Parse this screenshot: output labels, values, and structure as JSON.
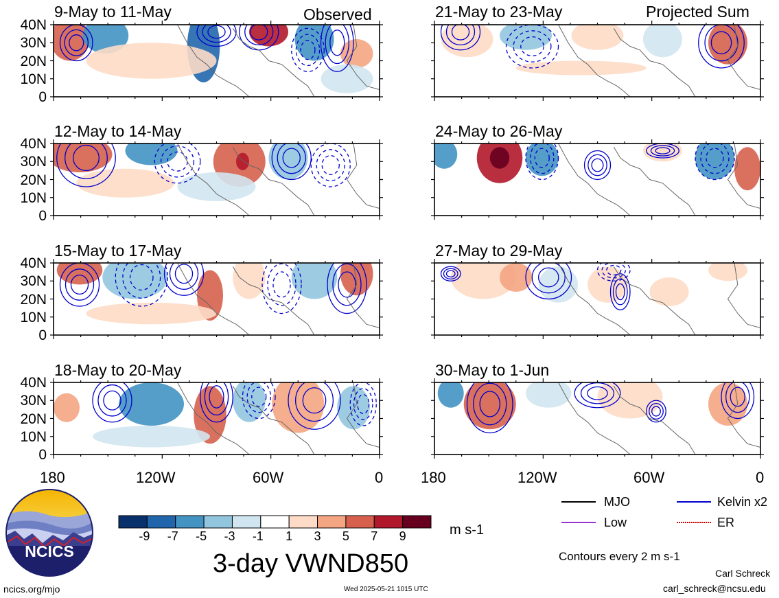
{
  "header": {
    "left_tag": "Observed",
    "right_tag": "Projected Sum"
  },
  "panels": {
    "left": [
      {
        "title": "9-May to 11-May"
      },
      {
        "title": "12-May to 14-May"
      },
      {
        "title": "15-May to 17-May"
      },
      {
        "title": "18-May to 20-May"
      }
    ],
    "right": [
      {
        "title": "21-May to 23-May"
      },
      {
        "title": "24-May to 26-May"
      },
      {
        "title": "27-May to 29-May"
      },
      {
        "title": "30-May to 1-Jun"
      }
    ]
  },
  "axes": {
    "y_ticks": [
      "40N",
      "30N",
      "20N",
      "10N",
      "0"
    ],
    "x_ticks": [
      "180",
      "120W",
      "60W",
      "0"
    ]
  },
  "colorbar": {
    "labels": [
      "-9",
      "-7",
      "-5",
      "-3",
      "-1",
      "1",
      "3",
      "5",
      "7",
      "9"
    ],
    "units": "m s-1",
    "colors": [
      "#08306b",
      "#2166ac",
      "#4393c3",
      "#92c5de",
      "#d1e5f0",
      "#ffffff",
      "#fddbc7",
      "#f4a582",
      "#d6604d",
      "#b2182b",
      "#67001f"
    ]
  },
  "main_title": "3-day VWND850",
  "legend": {
    "items": [
      {
        "label": "MJO",
        "color": "#000000"
      },
      {
        "label": "Kelvin x2",
        "color": "#0000cc"
      },
      {
        "label": "Low",
        "color": "#9932cc"
      },
      {
        "label": "ER",
        "color": "#cc0000"
      }
    ],
    "note": "Contours every 2 m s-1"
  },
  "logo": {
    "text": "NCICS"
  },
  "footer": {
    "url": "ncics.org/mjo",
    "timestamp": "Wed 2025-05-21 1015 UTC",
    "author": "Carl Schreck",
    "email": "carl_schreck@ncsu.edu"
  }
}
